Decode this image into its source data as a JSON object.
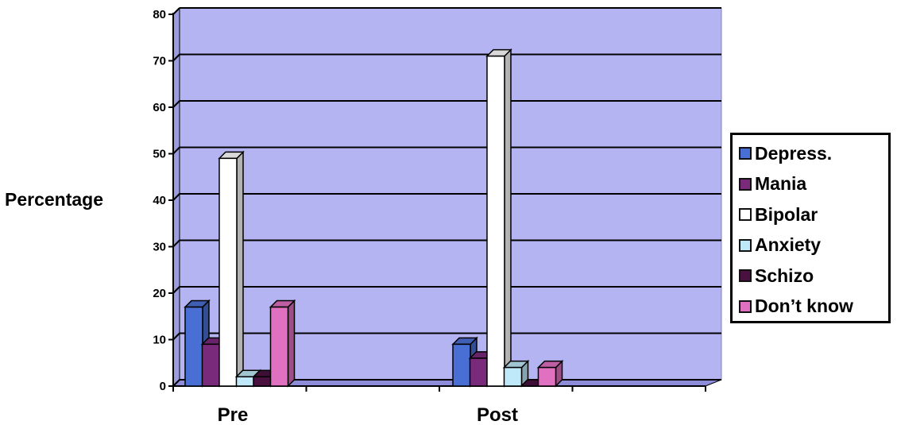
{
  "chart_data": {
    "type": "bar",
    "title": "",
    "xlabel": "",
    "ylabel": "Percentage",
    "ylim": [
      0,
      80
    ],
    "yticks": [
      0,
      10,
      20,
      30,
      40,
      50,
      60,
      70,
      80
    ],
    "categories": [
      "Pre",
      "Post"
    ],
    "series": [
      {
        "name": "Depress.",
        "color": "#4a6fd4",
        "values": [
          17,
          9
        ]
      },
      {
        "name": "Mania",
        "color": "#7a2a7a",
        "values": [
          9,
          6
        ]
      },
      {
        "name": "Bipolar",
        "color": "#ffffff",
        "values": [
          49,
          71
        ]
      },
      {
        "name": "Anxiety",
        "color": "#bfe8f8",
        "values": [
          2,
          4
        ]
      },
      {
        "name": "Schizo",
        "color": "#4a1040",
        "values": [
          2,
          0
        ]
      },
      {
        "name": "Don’t know",
        "color": "#e070c0",
        "values": [
          17,
          4
        ]
      }
    ],
    "grid": true,
    "legend_position": "right",
    "plot_background": "#b4b4f2",
    "three_d": true
  }
}
